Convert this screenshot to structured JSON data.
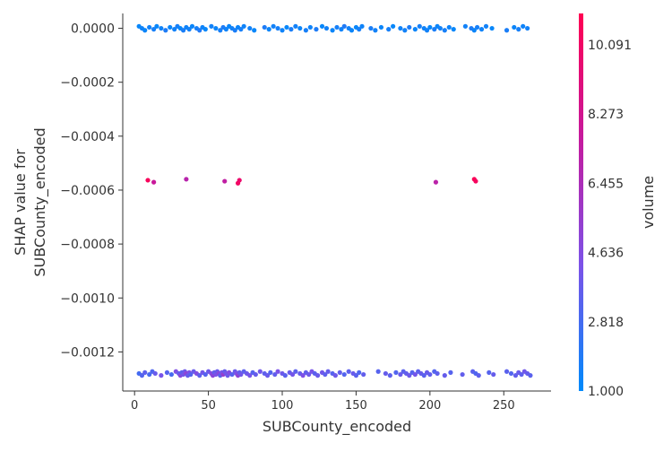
{
  "chart_data": {
    "type": "scatter",
    "xlabel": "SUBCounty_encoded",
    "ylabel_lines": [
      "SHAP value for",
      "SUBCounty_encoded"
    ],
    "xlim": [
      -8,
      282
    ],
    "ylim": [
      -0.001345,
      5.5e-05
    ],
    "x_ticks": [
      0,
      50,
      100,
      150,
      200,
      250
    ],
    "x_tick_labels": [
      "0",
      "50",
      "100",
      "150",
      "200",
      "250"
    ],
    "y_ticks": [
      0.0,
      -0.0002,
      -0.0004,
      -0.0006,
      -0.0008,
      -0.001,
      -0.0012
    ],
    "y_tick_labels": [
      "0.0000",
      "−0.0002",
      "−0.0004",
      "−0.0006",
      "−0.0008",
      "−0.0010",
      "−0.0012"
    ],
    "colorbar": {
      "label": "volume",
      "range": [
        1.0,
        10.91
      ],
      "ticks": [
        1.0,
        2.818,
        4.636,
        6.455,
        8.273,
        10.091
      ],
      "tick_labels": [
        "1.000",
        "2.818",
        "4.636",
        "6.455",
        "8.273",
        "10.091"
      ],
      "colors": [
        "#008afb",
        "#7c52e8",
        "#c51a9e",
        "#ff0052"
      ]
    },
    "series": [
      {
        "y": 0.0,
        "x": [
          3,
          5,
          7,
          10,
          13,
          15,
          18,
          21,
          24,
          27,
          29,
          31,
          33,
          35,
          37,
          39,
          42,
          44,
          46,
          48,
          52,
          55,
          58,
          60,
          62,
          64,
          66,
          68,
          70,
          72,
          74,
          78,
          81,
          88,
          91,
          94,
          97,
          100,
          103,
          106,
          109,
          112,
          116,
          119,
          123,
          127,
          130,
          134,
          137,
          140,
          142,
          145,
          147,
          150,
          152,
          154,
          160,
          163,
          167,
          172,
          175,
          180,
          183,
          186,
          190,
          193,
          196,
          198,
          200,
          203,
          205,
          207,
          210,
          213,
          216,
          224,
          228,
          230,
          232,
          235,
          238,
          242,
          252,
          257,
          260,
          263,
          266
        ],
        "v": [
          1.2,
          1.4,
          1.3,
          1.5,
          1.6,
          1.2,
          1.4,
          1.8,
          1.3,
          1.5,
          1.6,
          1.2,
          1.7,
          1.4,
          1.5,
          1.3,
          1.6,
          1.9,
          1.4,
          1.2,
          1.5,
          1.3,
          1.6,
          1.8,
          1.4,
          1.2,
          1.5,
          1.7,
          1.3,
          1.6,
          1.4,
          1.5,
          1.2,
          1.8,
          1.3,
          1.5,
          1.6,
          1.4,
          1.2,
          1.7,
          1.5,
          1.3,
          1.6,
          1.4,
          1.8,
          1.2,
          1.5,
          1.3,
          1.6,
          1.4,
          1.9,
          1.5,
          1.3,
          1.2,
          1.6,
          1.4,
          1.7,
          1.5,
          1.3,
          1.6,
          1.2,
          1.4,
          1.5,
          1.8,
          1.3,
          1.6,
          1.4,
          1.5,
          1.2,
          1.7,
          1.3,
          1.5,
          1.6,
          1.4,
          1.2,
          1.5,
          1.8,
          1.3,
          1.6,
          1.4,
          1.5,
          1.2,
          1.7,
          1.3,
          1.6,
          1.4,
          1.5
        ]
      },
      {
        "y": -0.000567,
        "x": [
          9,
          13,
          35,
          61,
          70,
          71,
          204,
          230,
          231
        ],
        "v": [
          10.5,
          7.8,
          7.0,
          7.4,
          10.2,
          9.8,
          7.1,
          10.7,
          10.4
        ]
      },
      {
        "y": -0.00128,
        "x": [
          3,
          5,
          7,
          10,
          12,
          14,
          18,
          22,
          25,
          28,
          30,
          31,
          32,
          33,
          34,
          35,
          36,
          37,
          38,
          40,
          42,
          44,
          46,
          48,
          50,
          52,
          53,
          54,
          55,
          56,
          57,
          58,
          59,
          60,
          61,
          62,
          63,
          64,
          66,
          68,
          69,
          70,
          71,
          72,
          74,
          76,
          78,
          80,
          82,
          85,
          88,
          90,
          92,
          95,
          97,
          100,
          102,
          105,
          107,
          109,
          112,
          114,
          116,
          118,
          120,
          122,
          124,
          127,
          129,
          131,
          134,
          136,
          139,
          142,
          145,
          148,
          150,
          152,
          155,
          165,
          170,
          173,
          177,
          180,
          182,
          184,
          186,
          188,
          190,
          192,
          194,
          196,
          198,
          200,
          203,
          205,
          210,
          214,
          222,
          229,
          231,
          233,
          240,
          243,
          252,
          255,
          258,
          260,
          262,
          264,
          266,
          268
        ],
        "v": [
          2.8,
          3.2,
          3.5,
          2.9,
          3.1,
          3.8,
          4.2,
          3.3,
          2.9,
          4.5,
          3.6,
          4.8,
          3.4,
          4.1,
          3.9,
          5.2,
          3.7,
          4.4,
          3.2,
          3.8,
          4.6,
          3.5,
          4.0,
          3.3,
          3.9,
          4.7,
          5.0,
          3.6,
          4.3,
          3.8,
          4.9,
          3.4,
          4.2,
          5.5,
          3.7,
          4.1,
          3.9,
          4.6,
          3.3,
          3.8,
          4.4,
          5.1,
          3.6,
          4.0,
          3.5,
          3.9,
          4.2,
          3.3,
          3.7,
          4.0,
          3.5,
          3.8,
          3.2,
          3.6,
          4.3,
          3.9,
          3.4,
          3.8,
          4.1,
          3.5,
          3.7,
          4.4,
          3.6,
          3.9,
          4.2,
          3.4,
          3.8,
          4.0,
          3.5,
          3.7,
          3.3,
          3.9,
          3.6,
          3.2,
          3.5,
          3.8,
          3.4,
          3.1,
          3.6,
          3.3,
          3.7,
          3.5,
          3.2,
          3.8,
          3.4,
          3.6,
          3.9,
          3.3,
          4.1,
          3.5,
          3.7,
          3.4,
          3.8,
          3.6,
          3.2,
          3.5,
          3.7,
          3.3,
          3.6,
          3.4,
          3.1,
          3.5,
          3.3,
          3.7,
          3.4,
          3.2,
          3.6,
          3.8,
          3.5,
          4.0,
          3.7,
          3.4
        ]
      }
    ]
  }
}
